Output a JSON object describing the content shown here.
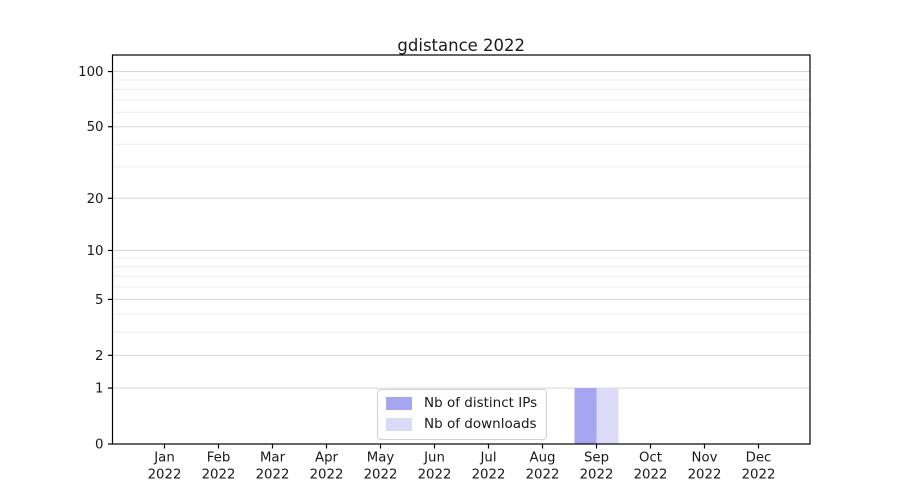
{
  "chart_data": {
    "type": "bar",
    "title": "gdistance 2022",
    "categories": [
      "Jan 2022",
      "Feb 2022",
      "Mar 2022",
      "Apr 2022",
      "May 2022",
      "Jun 2022",
      "Jul 2022",
      "Aug 2022",
      "Sep 2022",
      "Oct 2022",
      "Nov 2022",
      "Dec 2022"
    ],
    "series": [
      {
        "name": "Nb of distinct IPs",
        "color": "#a5a5f2",
        "values": [
          0,
          0,
          0,
          0,
          0,
          0,
          0,
          0,
          1,
          0,
          0,
          0
        ]
      },
      {
        "name": "Nb of downloads",
        "color": "#dbdbf8",
        "values": [
          0,
          0,
          0,
          0,
          0,
          0,
          0,
          0,
          1,
          0,
          0,
          0
        ]
      }
    ],
    "xlabel": "",
    "ylabel": "",
    "yscale": "log1p",
    "ylim": [
      0,
      123
    ],
    "y_major_ticks": [
      0,
      1,
      2,
      5,
      10,
      20,
      50,
      100
    ],
    "y_minor_gridlines": [
      3,
      4,
      6,
      7,
      8,
      9,
      30,
      40,
      60,
      70,
      80,
      90
    ],
    "grid": "horizontal",
    "legend_position": "bottom-center"
  },
  "colors": {
    "background": "#ffffff",
    "axis": "#000000",
    "tick_text": "#1a1a1a",
    "grid_major": "#d6d6d6",
    "grid_minor": "#ececec",
    "legend_border": "#d2d2d2"
  }
}
